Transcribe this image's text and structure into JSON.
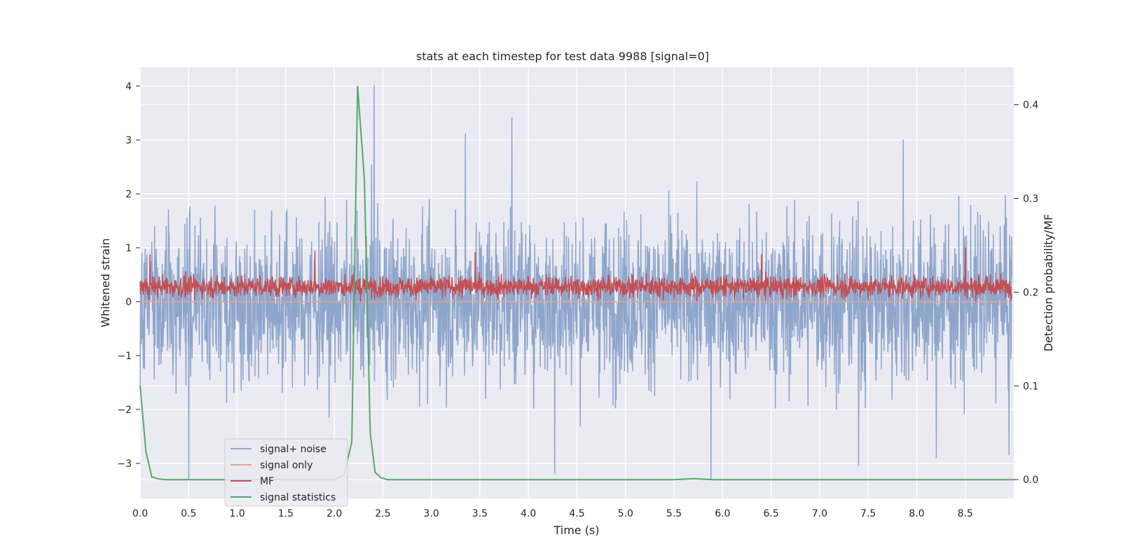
{
  "chart_data": {
    "type": "line",
    "title": "stats at each timestep for test data 9988 [signal=0]",
    "xlabel": "Time (s)",
    "ylabel": "Whitened strain",
    "y2label": "Detection probability/MF",
    "xlim": [
      0.0,
      9.0
    ],
    "ylim": [
      -3.65,
      4.35
    ],
    "y2lim": [
      -0.02,
      0.44
    ],
    "xticks": [
      0.0,
      0.5,
      1.0,
      1.5,
      2.0,
      2.5,
      3.0,
      3.5,
      4.0,
      4.5,
      5.0,
      5.5,
      6.0,
      6.5,
      7.0,
      7.5,
      8.0,
      8.5
    ],
    "xtick_labels": [
      "0.0",
      "0.5",
      "1.0",
      "1.5",
      "2.0",
      "2.5",
      "3.0",
      "3.5",
      "4.0",
      "4.5",
      "5.0",
      "5.5",
      "6.0",
      "6.5",
      "7.0",
      "7.5",
      "8.0",
      "8.5"
    ],
    "yticks": [
      -3,
      -2,
      -1,
      0,
      1,
      2,
      3,
      4
    ],
    "ytick_labels": [
      "−3",
      "−2",
      "−1",
      "0",
      "1",
      "2",
      "3",
      "4"
    ],
    "y2ticks": [
      0.0,
      0.1,
      0.2,
      0.3,
      0.4
    ],
    "y2tick_labels": [
      "0.0",
      "0.1",
      "0.2",
      "0.3",
      "0.4"
    ],
    "grid": true,
    "legend_position": "lower-left",
    "series": [
      {
        "name": "signal+ noise",
        "axis": "left",
        "color": "#8fa6cc",
        "description": "whitened noise, approx. range -2.5 to 2.5 with spikes to about 4.0 and -3.3",
        "peaks": [
          {
            "x": 2.41,
            "y": 4.02
          },
          {
            "x": 3.83,
            "y": 3.42
          },
          {
            "x": 3.35,
            "y": 3.12
          },
          {
            "x": 7.86,
            "y": 3.01
          },
          {
            "x": 0.5,
            "y": -3.3
          },
          {
            "x": 4.27,
            "y": -3.2
          },
          {
            "x": 5.88,
            "y": -3.3
          },
          {
            "x": 7.4,
            "y": -3.05
          },
          {
            "x": 8.2,
            "y": -2.9
          },
          {
            "x": 8.95,
            "y": -2.85
          }
        ]
      },
      {
        "name": "signal only",
        "axis": "left",
        "color": "#e8a48c",
        "constant": 0.0
      },
      {
        "name": "MF",
        "axis": "left",
        "color": "#c44e52",
        "description": "matched filter output, approx. 0 to 0.6 with peaks near 1.0",
        "peaks": [
          {
            "x": 0.1,
            "y": 0.88
          },
          {
            "x": 1.8,
            "y": 0.95
          },
          {
            "x": 3.45,
            "y": 0.92
          },
          {
            "x": 6.4,
            "y": 0.88
          },
          {
            "x": 8.5,
            "y": 1.0
          }
        ]
      },
      {
        "name": "signal statistics",
        "axis": "right",
        "color": "#55a868",
        "x": [
          0.0,
          0.06,
          0.12,
          0.18,
          0.25,
          2.0,
          2.1,
          2.18,
          2.24,
          2.31,
          2.37,
          2.42,
          2.48,
          2.55,
          5.5,
          5.7,
          5.9,
          9.0
        ],
        "values": [
          0.1,
          0.03,
          0.003,
          0.001,
          0.0,
          0.0,
          0.005,
          0.04,
          0.42,
          0.32,
          0.05,
          0.008,
          0.002,
          0.0,
          0.0,
          0.001,
          0.0,
          0.0
        ]
      }
    ]
  }
}
